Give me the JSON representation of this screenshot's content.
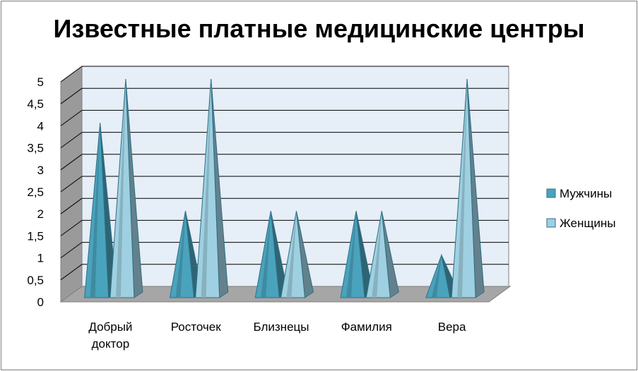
{
  "chart_data": {
    "type": "bar",
    "title": "Известные платные медицинские центры",
    "categories": [
      "Добрый доктор",
      "Росточек",
      "Близнецы",
      "Фамилия",
      "Вера"
    ],
    "category_lines": [
      [
        "Добрый",
        "доктор"
      ],
      [
        "Росточек"
      ],
      [
        "Близнецы"
      ],
      [
        "Фамилия"
      ],
      [
        "Вера"
      ]
    ],
    "series": [
      {
        "name": "Мужчины",
        "values": [
          4,
          2,
          2,
          2,
          1
        ],
        "color": "#4aa3bd"
      },
      {
        "name": "Женщины",
        "values": [
          5,
          5,
          2,
          2,
          5
        ],
        "color": "#9fd0e1"
      }
    ],
    "yticks": [
      "0",
      "0,5",
      "1",
      "1,5",
      "2",
      "2,5",
      "3",
      "3,5",
      "4",
      "4,5",
      "5"
    ],
    "ylim": [
      0,
      5
    ],
    "grid": true,
    "legend": "right",
    "style": "3d-pyramid"
  }
}
